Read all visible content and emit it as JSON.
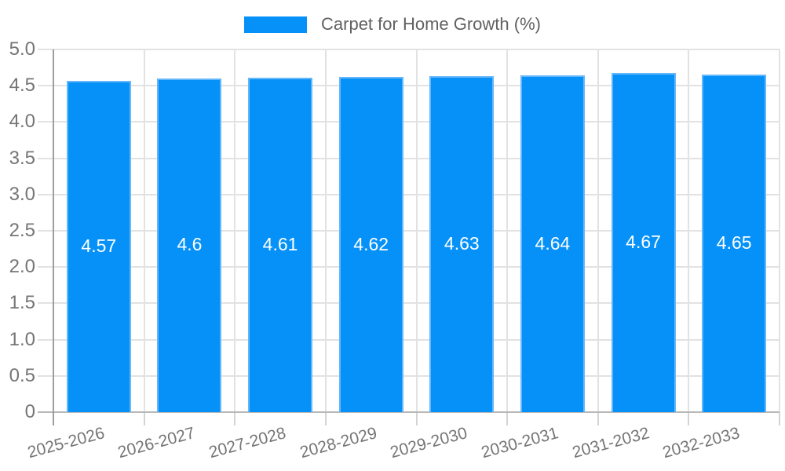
{
  "legend": {
    "label": "Carpet for Home Growth (%)"
  },
  "colors": {
    "bar_fill": "#0591f8",
    "bar_border": "#66b7f9",
    "grid": "#e2e2e2",
    "axis_line": "#9e9e9e",
    "baseline": "#b8b8b8",
    "tick": "#d4d4d4",
    "tick_label": "#757575",
    "legend_text": "#616161",
    "value_label": "#ffffff",
    "background": "#ffffff"
  },
  "chart_data": {
    "type": "bar",
    "title": "Carpet for Home Growth (%)",
    "categories": [
      "2025-2026",
      "2026-2027",
      "2027-2028",
      "2028-2029",
      "2029-2030",
      "2030-2031",
      "2031-2032",
      "2032-2033"
    ],
    "values": [
      4.57,
      4.6,
      4.61,
      4.62,
      4.63,
      4.64,
      4.67,
      4.65
    ],
    "value_labels": [
      "4.57",
      "4.6",
      "4.61",
      "4.62",
      "4.63",
      "4.64",
      "4.67",
      "4.65"
    ],
    "xlabel": "",
    "ylabel": "",
    "ylim": [
      0,
      5
    ],
    "ytick_step": 0.5,
    "ytick_labels": [
      "0",
      "0.5",
      "1.0",
      "1.5",
      "2.0",
      "2.5",
      "3.0",
      "3.5",
      "4.0",
      "4.5",
      "5.0"
    ],
    "grid": true,
    "legend_position": "top-center",
    "x_label_rotation_deg": -15
  }
}
